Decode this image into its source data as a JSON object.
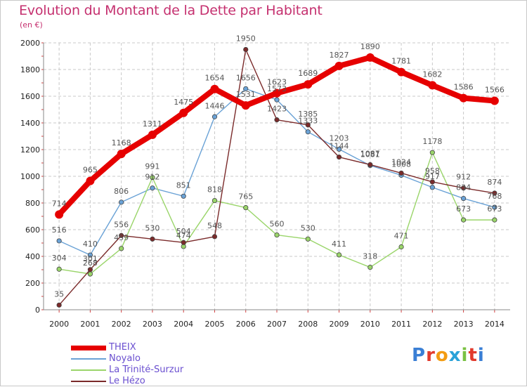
{
  "header": {
    "title": "Evolution du Montant de la Dette par Habitant",
    "subtitle": "(en €)"
  },
  "logo": {
    "text": "Proxiti",
    "letter_colors": [
      "#3a7fd5",
      "#e23a2c",
      "#f39c12",
      "#2aa2d8",
      "#7ac143",
      "#e23a2c",
      "#3a7fd5"
    ]
  },
  "chart_data": {
    "type": "line",
    "title": "Evolution du Montant de la Dette par Habitant",
    "subtitle": "(en €)",
    "xlabel": "",
    "ylabel": "",
    "x": [
      "2000",
      "2001",
      "2002",
      "2003",
      "2004",
      "2005",
      "2006",
      "2007",
      "2008",
      "2009",
      "2010",
      "2011",
      "2012",
      "2013",
      "2014"
    ],
    "ylim": [
      0,
      2000
    ],
    "yticks": [
      "0",
      "200",
      "400",
      "600",
      "800",
      "1000",
      "1200",
      "1400",
      "1600",
      "1800",
      "2000"
    ],
    "grid": true,
    "legend_position": "bottom-left",
    "series": [
      {
        "name": "THEIX",
        "color": "#e60000",
        "values": [
          714,
          965,
          1168,
          1311,
          1475,
          1654,
          1531,
          1623,
          1689,
          1827,
          1890,
          1781,
          1682,
          1586,
          1566
        ],
        "labels": [
          "714",
          "965",
          "1168",
          "1311",
          "1475",
          "1654",
          "1531",
          "1623",
          "1689",
          "1827",
          "1890",
          "1781",
          "1682",
          "1586",
          "1566"
        ]
      },
      {
        "name": "Noyalo",
        "color": "#6aa2d6",
        "values": [
          516,
          410,
          806,
          912,
          851,
          1446,
          1656,
          1573,
          1333,
          1203,
          1081,
          1008,
          917,
          834,
          768
        ],
        "labels": [
          "516",
          "410",
          "806",
          "912",
          "851",
          "1446",
          "1656",
          "1573",
          "1333",
          "1203",
          "1081",
          "1008",
          "917",
          "834",
          "768"
        ]
      },
      {
        "name": "La Trinité-Surzur",
        "color": "#9ad56a",
        "values": [
          304,
          268,
          459,
          991,
          474,
          818,
          765,
          560,
          530,
          411,
          318,
          471,
          1178,
          673,
          673
        ],
        "labels": [
          "304",
          "268",
          "459",
          "991",
          "474",
          "818",
          "765",
          "560",
          "530",
          "411",
          "318",
          "471",
          "1178",
          "673",
          "673"
        ]
      },
      {
        "name": "Le Hézo",
        "color": "#7a2a2a",
        "values": [
          35,
          301,
          556,
          530,
          504,
          548,
          1950,
          1423,
          1385,
          1144,
          1087,
          1024,
          958,
          912,
          874
        ],
        "labels": [
          "35",
          "301",
          "556",
          "530",
          "504",
          "548",
          "1950",
          "1423",
          "1385",
          "1144",
          "1087",
          "1024",
          "958",
          "912",
          "874"
        ]
      }
    ]
  }
}
